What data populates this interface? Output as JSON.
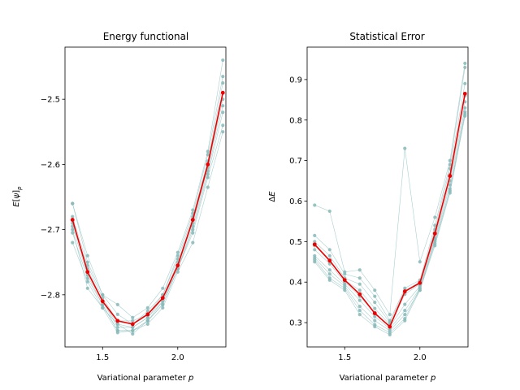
{
  "chart_data": [
    {
      "type": "line",
      "title": "Energy functional",
      "xlabel": "Variational parameter p",
      "ylabel": "E[ψ]p",
      "xlim": [
        1.25,
        2.32
      ],
      "ylim": [
        -2.88,
        -2.42
      ],
      "xticks": [
        1.5,
        2.0
      ],
      "xtick_labels": [
        "1.5",
        "2.0"
      ],
      "yticks": [
        -2.8,
        -2.7,
        -2.6,
        -2.5
      ],
      "ytick_labels": [
        "−2.8",
        "−2.7",
        "−2.6",
        "−2.5"
      ],
      "x": [
        1.3,
        1.4,
        1.5,
        1.6,
        1.7,
        1.8,
        1.9,
        2.0,
        2.1,
        2.2,
        2.3
      ],
      "series": [
        {
          "values": [
            -2.685,
            -2.765,
            -2.81,
            -2.84,
            -2.845,
            -2.83,
            -2.805,
            -2.755,
            -2.685,
            -2.6,
            -2.49
          ],
          "role": "mean"
        },
        {
          "values": [
            -2.66,
            -2.74,
            -2.8,
            -2.815,
            -2.835,
            -2.82,
            -2.79,
            -2.735,
            -2.67,
            -2.58,
            -2.44
          ],
          "role": "run"
        },
        {
          "values": [
            -2.66,
            -2.75,
            -2.8,
            -2.83,
            -2.845,
            -2.825,
            -2.8,
            -2.74,
            -2.675,
            -2.585,
            -2.465
          ],
          "role": "run"
        },
        {
          "values": [
            -2.68,
            -2.755,
            -2.805,
            -2.84,
            -2.84,
            -2.83,
            -2.8,
            -2.745,
            -2.68,
            -2.595,
            -2.475
          ],
          "role": "run"
        },
        {
          "values": [
            -2.685,
            -2.76,
            -2.81,
            -2.845,
            -2.85,
            -2.835,
            -2.805,
            -2.75,
            -2.685,
            -2.6,
            -2.49
          ],
          "role": "run"
        },
        {
          "values": [
            -2.69,
            -2.765,
            -2.81,
            -2.85,
            -2.85,
            -2.835,
            -2.81,
            -2.755,
            -2.69,
            -2.605,
            -2.5
          ],
          "role": "run"
        },
        {
          "values": [
            -2.695,
            -2.77,
            -2.815,
            -2.855,
            -2.855,
            -2.84,
            -2.81,
            -2.76,
            -2.695,
            -2.61,
            -2.51
          ],
          "role": "run"
        },
        {
          "values": [
            -2.705,
            -2.775,
            -2.815,
            -2.855,
            -2.855,
            -2.84,
            -2.815,
            -2.76,
            -2.7,
            -2.615,
            -2.52
          ],
          "role": "run"
        },
        {
          "values": [
            -2.72,
            -2.78,
            -2.82,
            -2.858,
            -2.855,
            -2.845,
            -2.82,
            -2.765,
            -2.72,
            -2.635,
            -2.55
          ],
          "role": "run"
        },
        {
          "values": [
            -2.7,
            -2.79,
            -2.82,
            -2.845,
            -2.86,
            -2.84,
            -2.815,
            -2.76,
            -2.705,
            -2.62,
            -2.54
          ],
          "role": "run"
        }
      ],
      "colors": {
        "mean": "#ee0000",
        "run": "#88b8b8"
      }
    },
    {
      "type": "line",
      "title": "Statistical Error",
      "xlabel": "Variational parameter p",
      "ylabel": "ΔE",
      "xlim": [
        1.25,
        2.32
      ],
      "ylim": [
        0.24,
        0.98
      ],
      "xticks": [
        1.5,
        2.0
      ],
      "xtick_labels": [
        "1.5",
        "2.0"
      ],
      "yticks": [
        0.3,
        0.4,
        0.5,
        0.6,
        0.7,
        0.8,
        0.9
      ],
      "ytick_labels": [
        "0.3",
        "0.4",
        "0.5",
        "0.6",
        "0.7",
        "0.8",
        "0.9"
      ],
      "x": [
        1.3,
        1.4,
        1.5,
        1.6,
        1.7,
        1.8,
        1.9,
        2.0,
        2.1,
        2.2,
        2.3
      ],
      "series": [
        {
          "values": [
            0.493,
            0.453,
            0.405,
            0.37,
            0.323,
            0.29,
            0.377,
            0.398,
            0.52,
            0.662,
            0.865
          ],
          "role": "mean"
        },
        {
          "values": [
            0.59,
            0.575,
            0.425,
            0.43,
            0.38,
            0.32,
            0.73,
            0.45,
            0.56,
            0.7,
            0.94
          ],
          "role": "run"
        },
        {
          "values": [
            0.515,
            0.48,
            0.42,
            0.41,
            0.365,
            0.305,
            0.385,
            0.405,
            0.54,
            0.69,
            0.93
          ],
          "role": "run"
        },
        {
          "values": [
            0.5,
            0.465,
            0.41,
            0.395,
            0.35,
            0.3,
            0.38,
            0.4,
            0.53,
            0.68,
            0.89
          ],
          "role": "run"
        },
        {
          "values": [
            0.49,
            0.455,
            0.405,
            0.38,
            0.335,
            0.295,
            0.37,
            0.395,
            0.52,
            0.665,
            0.86
          ],
          "role": "run"
        },
        {
          "values": [
            0.48,
            0.445,
            0.4,
            0.365,
            0.325,
            0.29,
            0.345,
            0.39,
            0.51,
            0.65,
            0.845
          ],
          "role": "run"
        },
        {
          "values": [
            0.465,
            0.43,
            0.395,
            0.355,
            0.315,
            0.285,
            0.33,
            0.385,
            0.505,
            0.64,
            0.83
          ],
          "role": "run"
        },
        {
          "values": [
            0.46,
            0.42,
            0.39,
            0.34,
            0.305,
            0.28,
            0.32,
            0.38,
            0.5,
            0.63,
            0.82
          ],
          "role": "run"
        },
        {
          "values": [
            0.455,
            0.41,
            0.385,
            0.33,
            0.295,
            0.275,
            0.31,
            0.385,
            0.495,
            0.625,
            0.815
          ],
          "role": "run"
        },
        {
          "values": [
            0.45,
            0.405,
            0.38,
            0.32,
            0.29,
            0.27,
            0.305,
            0.38,
            0.49,
            0.62,
            0.81
          ],
          "role": "run"
        }
      ],
      "colors": {
        "mean": "#ee0000",
        "run": "#88b8b8"
      }
    }
  ]
}
